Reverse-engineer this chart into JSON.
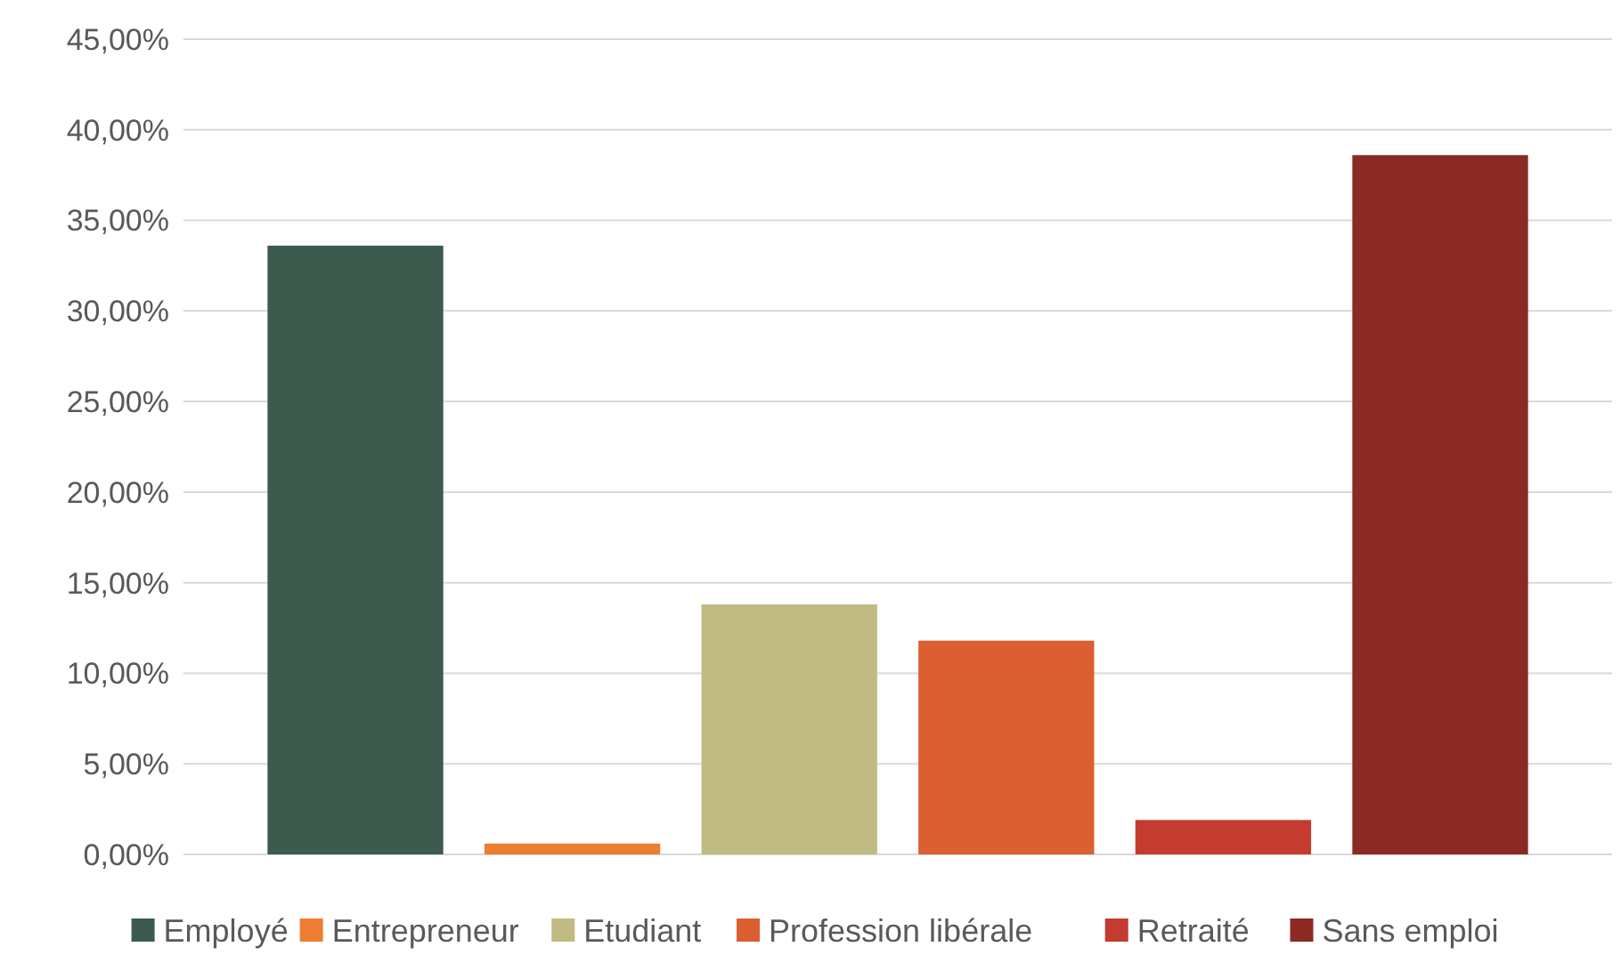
{
  "chart_data": {
    "type": "bar",
    "categories": [
      null
    ],
    "series": [
      {
        "name": "Employé",
        "color": "#3d5a4f",
        "values": [
          33.6
        ]
      },
      {
        "name": "Entrepreneur",
        "color": "#ed7d31",
        "values": [
          0.6
        ]
      },
      {
        "name": "Etudiant",
        "color": "#bfbb82",
        "values": [
          13.8
        ]
      },
      {
        "name": "Profession libérale",
        "color": "#db5f30",
        "values": [
          11.8
        ]
      },
      {
        "name": "Retraité",
        "color": "#c43b2f",
        "values": [
          1.9
        ]
      },
      {
        "name": "Sans emploi",
        "color": "#8b2a23",
        "values": [
          38.6
        ]
      }
    ],
    "ylim": [
      0,
      45
    ],
    "yticks": [
      {
        "value": 0,
        "label": "0,00%"
      },
      {
        "value": 5,
        "label": "5,00%"
      },
      {
        "value": 10,
        "label": "10,00%"
      },
      {
        "value": 15,
        "label": "15,00%"
      },
      {
        "value": 20,
        "label": "20,00%"
      },
      {
        "value": 25,
        "label": "25,00%"
      },
      {
        "value": 30,
        "label": "30,00%"
      },
      {
        "value": 35,
        "label": "35,00%"
      },
      {
        "value": 40,
        "label": "40,00%"
      },
      {
        "value": 45,
        "label": "45,00%"
      }
    ],
    "grid": "y",
    "legend": "bottom"
  }
}
